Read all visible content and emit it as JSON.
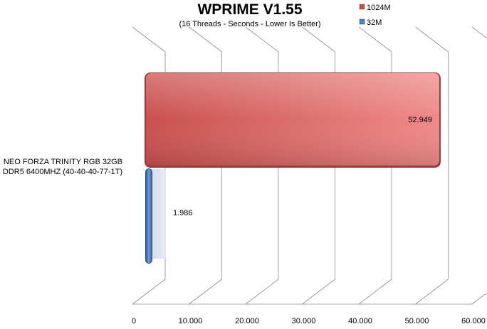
{
  "chart_data": {
    "type": "bar",
    "orientation": "horizontal",
    "title": "WPRIME V1.55",
    "subtitle": "(16 Threads - Seconds - Lower Is Better)",
    "categories": [
      "NEO FORZA TRINITY RGB 32GB DDR5 6400MHZ (40-40-40-77-1T)"
    ],
    "category_lines": [
      "NEO FORZA TRINITY RGB 32GB",
      "DDR5 6400MHZ (40-40-40-77-1T)"
    ],
    "series": [
      {
        "name": "1024M",
        "values": [
          52.949
        ],
        "labels": [
          "52.949"
        ],
        "color": "#d9605f"
      },
      {
        "name": "32M",
        "values": [
          1.986
        ],
        "labels": [
          "1.986"
        ],
        "color": "#4f81bd"
      }
    ],
    "xlim": [
      0,
      60
    ],
    "x_ticks": [
      0,
      10,
      20,
      30,
      40,
      50,
      60
    ],
    "x_tick_labels": [
      "0",
      "10.000",
      "20.000",
      "30.000",
      "40.000",
      "50.000",
      "60.000"
    ],
    "grid": true,
    "legend_position": "top-right",
    "style_3d": true
  }
}
